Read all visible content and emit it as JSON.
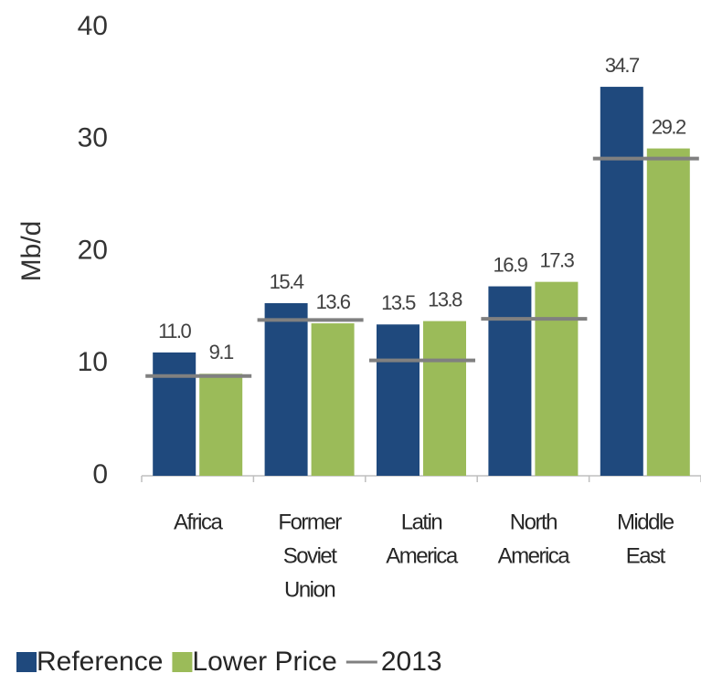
{
  "chart_data": {
    "type": "bar",
    "ylabel": "Mb/d",
    "categories": [
      [
        "Africa"
      ],
      [
        "Former",
        "Soviet",
        "Union"
      ],
      [
        "Latin",
        "America"
      ],
      [
        "North",
        "America"
      ],
      [
        "Middle",
        "East"
      ]
    ],
    "series": [
      {
        "name": "Reference",
        "color": "#1f497d",
        "values": [
          11.0,
          15.4,
          13.5,
          16.9,
          34.7
        ],
        "value_labels": [
          "11.0",
          "15.4",
          "13.5",
          "16.9",
          "34.7"
        ]
      },
      {
        "name": "Lower Price",
        "color": "#9bbb59",
        "values": [
          9.1,
          13.6,
          13.8,
          17.3,
          29.2
        ],
        "value_labels": [
          "9.1",
          "13.6",
          "13.8",
          "17.3",
          "29.2"
        ]
      },
      {
        "name": "2013",
        "color": "#808080",
        "type": "hline",
        "values": [
          8.9,
          13.9,
          10.3,
          14.0,
          28.3
        ]
      }
    ],
    "ylim": [
      0,
      40
    ],
    "yticks": [
      0,
      10,
      20,
      30,
      40
    ],
    "grid": false
  }
}
